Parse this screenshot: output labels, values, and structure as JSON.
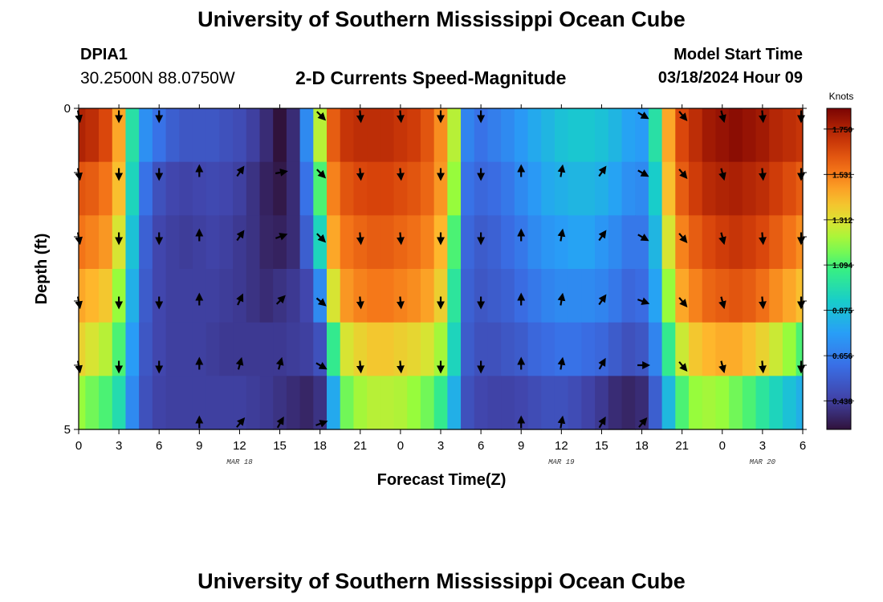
{
  "header": {
    "title": "University of Southern Mississippi Ocean Cube",
    "station": "DPIA1",
    "coordinates": "30.2500N  88.0750W",
    "subtitle": "2-D Currents Speed-Magnitude",
    "model_start_label": "Model Start Time",
    "model_start_value": "03/18/2024 Hour 09"
  },
  "footer": {
    "title": "University of Southern Mississippi Ocean Cube"
  },
  "chart_data": {
    "type": "heatmap",
    "title": "2-D Currents Speed-Magnitude",
    "xlabel": "Forecast Time(Z)",
    "ylabel": "Depth (ft)",
    "x_unit": "hours since 03/18 00Z",
    "xlim": [
      0,
      54
    ],
    "ylim": [
      0,
      5
    ],
    "x_ticks": [
      {
        "x": 0,
        "label": "0"
      },
      {
        "x": 3,
        "label": "3"
      },
      {
        "x": 6,
        "label": "6"
      },
      {
        "x": 9,
        "label": "9"
      },
      {
        "x": 12,
        "label": "12"
      },
      {
        "x": 15,
        "label": "15"
      },
      {
        "x": 18,
        "label": "18"
      },
      {
        "x": 21,
        "label": "21"
      },
      {
        "x": 24,
        "label": "0"
      },
      {
        "x": 27,
        "label": "3"
      },
      {
        "x": 30,
        "label": "6"
      },
      {
        "x": 33,
        "label": "9"
      },
      {
        "x": 36,
        "label": "12"
      },
      {
        "x": 39,
        "label": "15"
      },
      {
        "x": 42,
        "label": "18"
      },
      {
        "x": 45,
        "label": "21"
      },
      {
        "x": 48,
        "label": "0"
      },
      {
        "x": 51,
        "label": "3"
      },
      {
        "x": 54,
        "label": "6"
      }
    ],
    "y_ticks": [
      {
        "y": 0,
        "label": "0"
      },
      {
        "y": 1,
        "label": ""
      },
      {
        "y": 2,
        "label": ""
      },
      {
        "y": 3,
        "label": ""
      },
      {
        "y": 4,
        "label": ""
      },
      {
        "y": 5,
        "label": "5"
      }
    ],
    "date_labels": [
      {
        "x": 12,
        "label": "MAR 18"
      },
      {
        "x": 36,
        "label": "MAR 19"
      },
      {
        "x": 51,
        "label": "MAR 20"
      }
    ],
    "colorbar": {
      "unit": "Knots",
      "min": 0.3,
      "max": 1.85,
      "ticks": [
        0.438,
        0.656,
        0.875,
        1.094,
        1.312,
        1.531,
        1.75
      ]
    },
    "x": [
      0,
      1,
      2,
      3,
      4,
      5,
      6,
      7,
      8,
      9,
      10,
      11,
      12,
      13,
      14,
      15,
      16,
      17,
      18,
      19,
      20,
      21,
      22,
      23,
      24,
      25,
      26,
      27,
      28,
      29,
      30,
      31,
      32,
      33,
      34,
      35,
      36,
      37,
      38,
      39,
      40,
      41,
      42,
      43,
      44,
      45,
      46,
      47,
      48,
      49,
      50,
      51,
      52,
      53,
      54
    ],
    "depth_rows": [
      0,
      1,
      2,
      3,
      4,
      5
    ],
    "speed": [
      [
        1.75,
        1.72,
        1.65,
        1.45,
        1.0,
        0.72,
        0.62,
        0.55,
        0.52,
        0.52,
        0.52,
        0.5,
        0.48,
        0.44,
        0.38,
        0.3,
        0.38,
        0.7,
        1.25,
        1.6,
        1.7,
        1.72,
        1.72,
        1.72,
        1.7,
        1.68,
        1.62,
        1.5,
        1.25,
        0.68,
        0.62,
        0.66,
        0.7,
        0.75,
        0.8,
        0.84,
        0.88,
        0.9,
        0.9,
        0.88,
        0.84,
        0.78,
        0.76,
        1.0,
        1.45,
        1.65,
        1.72,
        1.78,
        1.8,
        1.82,
        1.8,
        1.78,
        1.74,
        1.72,
        1.7
      ],
      [
        1.62,
        1.6,
        1.55,
        1.4,
        0.95,
        0.62,
        0.5,
        0.46,
        0.45,
        0.46,
        0.47,
        0.46,
        0.44,
        0.4,
        0.35,
        0.32,
        0.38,
        0.62,
        1.1,
        1.52,
        1.62,
        1.65,
        1.66,
        1.66,
        1.64,
        1.62,
        1.58,
        1.48,
        1.2,
        0.62,
        0.58,
        0.6,
        0.64,
        0.7,
        0.75,
        0.8,
        0.82,
        0.84,
        0.84,
        0.82,
        0.78,
        0.72,
        0.7,
        0.92,
        1.4,
        1.6,
        1.68,
        1.73,
        1.75,
        1.76,
        1.74,
        1.72,
        1.68,
        1.64,
        1.6
      ],
      [
        1.55,
        1.52,
        1.48,
        1.3,
        0.88,
        0.56,
        0.46,
        0.44,
        0.43,
        0.44,
        0.45,
        0.44,
        0.42,
        0.4,
        0.36,
        0.35,
        0.38,
        0.55,
        0.95,
        1.45,
        1.55,
        1.58,
        1.6,
        1.6,
        1.58,
        1.56,
        1.52,
        1.42,
        1.1,
        0.58,
        0.54,
        0.56,
        0.6,
        0.64,
        0.7,
        0.74,
        0.76,
        0.78,
        0.78,
        0.74,
        0.7,
        0.64,
        0.64,
        0.84,
        1.3,
        1.52,
        1.6,
        1.65,
        1.68,
        1.7,
        1.68,
        1.65,
        1.6,
        1.55,
        1.5
      ],
      [
        1.45,
        1.42,
        1.38,
        1.2,
        0.82,
        0.54,
        0.46,
        0.44,
        0.44,
        0.44,
        0.44,
        0.43,
        0.42,
        0.4,
        0.38,
        0.4,
        0.42,
        0.46,
        0.7,
        1.3,
        1.48,
        1.52,
        1.54,
        1.54,
        1.52,
        1.5,
        1.46,
        1.36,
        1.02,
        0.56,
        0.52,
        0.54,
        0.56,
        0.6,
        0.64,
        0.68,
        0.7,
        0.7,
        0.7,
        0.68,
        0.64,
        0.58,
        0.6,
        0.78,
        1.2,
        1.45,
        1.52,
        1.58,
        1.6,
        1.62,
        1.6,
        1.56,
        1.5,
        1.45,
        1.4
      ],
      [
        1.35,
        1.3,
        1.25,
        1.1,
        0.76,
        0.52,
        0.46,
        0.44,
        0.44,
        0.44,
        0.43,
        0.42,
        0.42,
        0.42,
        0.42,
        0.42,
        0.43,
        0.44,
        0.5,
        1.05,
        1.3,
        1.35,
        1.38,
        1.38,
        1.36,
        1.34,
        1.3,
        1.22,
        0.95,
        0.54,
        0.5,
        0.5,
        0.52,
        0.54,
        0.58,
        0.6,
        0.62,
        0.62,
        0.6,
        0.58,
        0.54,
        0.5,
        0.52,
        0.68,
        1.05,
        1.28,
        1.38,
        1.42,
        1.44,
        1.44,
        1.4,
        1.35,
        1.28,
        1.2,
        1.1
      ],
      [
        1.2,
        1.15,
        1.1,
        0.98,
        0.7,
        0.5,
        0.45,
        0.44,
        0.44,
        0.44,
        0.44,
        0.44,
        0.44,
        0.43,
        0.42,
        0.4,
        0.38,
        0.36,
        0.4,
        0.8,
        1.15,
        1.22,
        1.25,
        1.25,
        1.24,
        1.2,
        1.15,
        1.05,
        0.82,
        0.5,
        0.46,
        0.45,
        0.45,
        0.46,
        0.48,
        0.5,
        0.5,
        0.48,
        0.45,
        0.42,
        0.38,
        0.36,
        0.38,
        0.55,
        0.85,
        1.1,
        1.2,
        1.22,
        1.2,
        1.15,
        1.1,
        1.02,
        0.95,
        0.88,
        0.82
      ]
    ],
    "vectors": {
      "x": [
        0,
        3,
        6,
        9,
        12,
        15,
        18,
        21,
        24,
        27,
        30,
        33,
        36,
        39,
        42,
        45,
        48,
        51,
        54
      ],
      "depths": [
        0,
        1,
        2,
        3,
        4,
        5
      ],
      "direction_deg_from_north": [
        [
          170,
          180,
          180,
          null,
          null,
          null,
          135,
          175,
          175,
          180,
          180,
          null,
          null,
          null,
          120,
          140,
          165,
          175,
          180
        ],
        [
          170,
          180,
          180,
          0,
          35,
          80,
          135,
          175,
          175,
          180,
          180,
          0,
          10,
          35,
          120,
          140,
          165,
          175,
          180
        ],
        [
          170,
          180,
          180,
          0,
          35,
          70,
          135,
          175,
          175,
          180,
          180,
          0,
          10,
          35,
          120,
          140,
          165,
          175,
          180
        ],
        [
          170,
          180,
          180,
          0,
          25,
          45,
          130,
          175,
          175,
          180,
          180,
          0,
          10,
          35,
          110,
          140,
          165,
          175,
          180
        ],
        [
          170,
          180,
          180,
          0,
          15,
          15,
          120,
          175,
          175,
          180,
          180,
          0,
          10,
          30,
          90,
          140,
          165,
          175,
          180
        ],
        [
          null,
          null,
          null,
          0,
          40,
          30,
          70,
          null,
          null,
          null,
          null,
          0,
          10,
          30,
          40,
          null,
          null,
          null,
          null
        ]
      ]
    }
  }
}
